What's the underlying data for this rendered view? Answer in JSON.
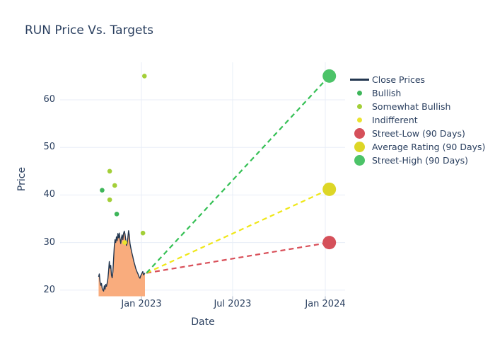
{
  "title": "RUN Price Vs. Targets",
  "chart_data": {
    "type": "line",
    "title": "RUN Price Vs. Targets",
    "xlabel": "Date",
    "ylabel": "Price",
    "grid": true,
    "legend_position": "right",
    "ylim": [
      18.7,
      67.7
    ],
    "y_ticks": [
      20,
      30,
      40,
      50,
      60
    ],
    "x_ticks": [
      {
        "label": "Jan 2023",
        "date": "2023-01-01"
      },
      {
        "label": "Jul 2023",
        "date": "2023-07-01"
      },
      {
        "label": "Jan 2024",
        "date": "2024-01-01"
      }
    ],
    "close_prices": {
      "name": "Close Prices",
      "line_color": "#233750",
      "fill_color": "#f9ac7d",
      "start_date": "2022-10-08",
      "end_date": "2023-01-08",
      "prices": [
        22.8,
        23.4,
        21.8,
        21.0,
        21.4,
        20.4,
        20.0,
        19.8,
        20.9,
        20.2,
        21.2,
        20.8,
        21.5,
        22.4,
        24.0,
        26.0,
        24.6,
        25.2,
        23.2,
        22.6,
        23.8,
        26.5,
        29.2,
        30.6,
        30.0,
        31.2,
        30.4,
        31.9,
        31.0,
        32.0,
        30.8,
        29.8,
        31.0,
        31.6,
        30.6,
        31.9,
        32.4,
        31.8,
        30.6,
        29.4,
        29.8,
        31.0,
        32.5,
        31.6,
        29.8,
        29.0,
        28.3,
        27.6,
        27.0,
        26.3,
        25.7,
        25.2,
        24.6,
        24.2,
        23.8,
        23.5,
        23.1,
        22.7,
        22.5,
        23.0,
        23.3,
        23.6,
        23.9,
        23.2,
        23.4,
        23.6
      ]
    },
    "ratings": [
      {
        "name": "Bullish",
        "color": "#3eb65a",
        "points": [
          [
            "2022-10-15",
            41
          ],
          [
            "2022-11-13",
            36
          ]
        ]
      },
      {
        "name": "Somewhat Bullish",
        "color": "#a3cf38",
        "points": [
          [
            "2022-10-30",
            45
          ],
          [
            "2022-10-30",
            39
          ],
          [
            "2022-11-09",
            42
          ],
          [
            "2023-01-04",
            32
          ],
          [
            "2023-01-07",
            65
          ]
        ]
      },
      {
        "name": "Indifferent",
        "color": "#ebe32e",
        "points": [
          [
            "2022-11-29",
            30
          ]
        ]
      }
    ],
    "targets": [
      {
        "name": "Street-Low (90 Days)",
        "line_color": "#d9505a",
        "marker_color": "#d5505a",
        "start": [
          "2023-01-11",
          23.6
        ],
        "end": [
          "2024-01-09",
          30
        ]
      },
      {
        "name": "Average Rating (90 Days)",
        "line_color": "#efe718",
        "marker_color": "#ddd626",
        "start": [
          "2023-01-11",
          23.6
        ],
        "end": [
          "2024-01-09",
          41.2
        ]
      },
      {
        "name": "Street-High (90 Days)",
        "line_color": "#35c055",
        "marker_color": "#4cc368",
        "start": [
          "2023-01-11",
          23.6
        ],
        "end": [
          "2024-01-09",
          65
        ]
      }
    ],
    "legend": [
      {
        "label": "Close Prices",
        "symbol": "line",
        "color": "#233750"
      },
      {
        "label": "Bullish",
        "symbol": "dot",
        "color": "#3eb65a"
      },
      {
        "label": "Somewhat Bullish",
        "symbol": "dot",
        "color": "#a3cf38"
      },
      {
        "label": "Indifferent",
        "symbol": "dot",
        "color": "#ebe32e"
      },
      {
        "label": "Street-Low (90 Days)",
        "symbol": "circle",
        "color": "#d5505a"
      },
      {
        "label": "Average Rating (90 Days)",
        "symbol": "circle",
        "color": "#ddd626"
      },
      {
        "label": "Street-High (90 Days)",
        "symbol": "circle",
        "color": "#4cc368"
      }
    ],
    "colors": {
      "grid": "#e8eef7",
      "tick_mark": "#a9b4c7",
      "text": "#2a3f5f"
    }
  }
}
